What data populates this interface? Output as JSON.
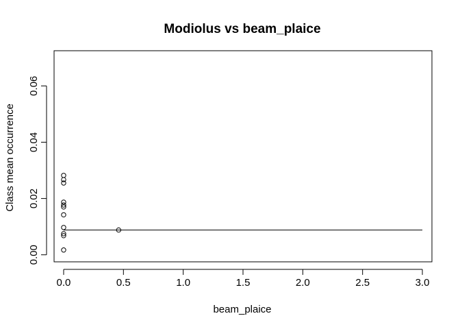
{
  "chart_data": {
    "type": "scatter",
    "title": "Modiolus vs beam_plaice",
    "xlabel": "beam_plaice",
    "ylabel": "Class mean occurrence",
    "xlim": [
      -0.08,
      3.08
    ],
    "ylim": [
      -0.0025,
      0.0725
    ],
    "x_ticks": [
      0.0,
      0.5,
      1.0,
      1.5,
      2.0,
      2.5,
      3.0
    ],
    "x_tick_labels": [
      "0.0",
      "0.5",
      "1.0",
      "1.5",
      "2.0",
      "2.5",
      "3.0"
    ],
    "y_ticks": [
      0.0,
      0.02,
      0.04,
      0.06
    ],
    "y_tick_labels": [
      "0.00",
      "0.02",
      "0.04",
      "0.06"
    ],
    "points": [
      {
        "x": 0.0,
        "y": 0.0282
      },
      {
        "x": 0.0,
        "y": 0.0267
      },
      {
        "x": 0.0,
        "y": 0.0255
      },
      {
        "x": 0.0,
        "y": 0.0187
      },
      {
        "x": 0.0,
        "y": 0.0177
      },
      {
        "x": 0.0,
        "y": 0.017
      },
      {
        "x": 0.0,
        "y": 0.0142
      },
      {
        "x": 0.0,
        "y": 0.0097
      },
      {
        "x": 0.0,
        "y": 0.0075
      },
      {
        "x": 0.0,
        "y": 0.0068
      },
      {
        "x": 0.0,
        "y": 0.0017
      },
      {
        "x": 0.46,
        "y": 0.0088
      }
    ],
    "fit_line": {
      "x": [
        0.0,
        3.0
      ],
      "y": [
        0.0088,
        0.0088
      ]
    },
    "grid": false,
    "legend": "none"
  }
}
